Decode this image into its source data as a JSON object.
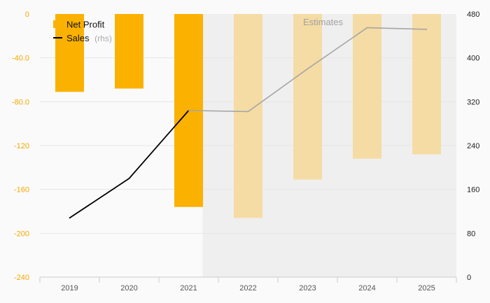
{
  "chart_data": {
    "type": "bar",
    "categories": [
      "2019",
      "2020",
      "2021",
      "2022",
      "2023",
      "2024",
      "2025"
    ],
    "series": [
      {
        "name": "Net Profit",
        "type": "bar",
        "axis": "left",
        "values": [
          -71,
          -68,
          -176,
          -186,
          -151,
          -132,
          -128
        ],
        "estimated": [
          false,
          false,
          false,
          true,
          true,
          true,
          true
        ]
      },
      {
        "name": "Sales",
        "name_suffix": "(rhs)",
        "type": "line",
        "axis": "right",
        "values": [
          108,
          180,
          304,
          302,
          380,
          455,
          452
        ],
        "estimated": [
          false,
          false,
          false,
          true,
          true,
          true,
          true
        ]
      }
    ],
    "y_left": {
      "min": -240,
      "max": 0,
      "ticks": [
        "0",
        "-40.0",
        "-80.0",
        "-120",
        "-160",
        "-200",
        "-240"
      ]
    },
    "y_right": {
      "min": 0,
      "max": 480,
      "ticks": [
        "480",
        "400",
        "320",
        "240",
        "160",
        "80",
        "0"
      ]
    },
    "estimates_label": "Estimates",
    "estimates_from_category": "2022",
    "grid": true,
    "legend_position": "top-left",
    "colors": {
      "bar_actual": "#fbb100",
      "bar_estimate": "#f5dca4",
      "line_actual": "#000000",
      "line_estimate": "#a6a6a6",
      "estimate_shade": "#efefef",
      "left_tick": "#f5a800"
    }
  }
}
